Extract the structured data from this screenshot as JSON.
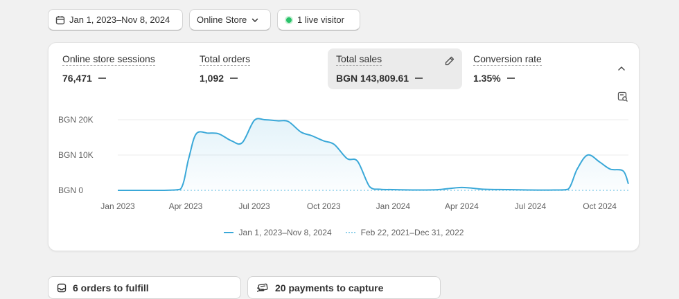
{
  "filters": {
    "date_range": "Jan 1, 2023–Nov 8, 2024",
    "store": "Online Store",
    "live_visitors": "1 live visitor",
    "live_color": "#29c26a"
  },
  "metrics": [
    {
      "label": "Online store sessions",
      "value": "76,471"
    },
    {
      "label": "Total orders",
      "value": "1,092"
    },
    {
      "label": "Total sales",
      "value": "BGN 143,809.61"
    },
    {
      "label": "Conversion rate",
      "value": "1.35%"
    }
  ],
  "chart_data": {
    "type": "area",
    "y_ticks": [
      "BGN 20K",
      "BGN 10K",
      "BGN 0"
    ],
    "x_ticks": [
      "Jan 2023",
      "Apr 2023",
      "Jul 2023",
      "Oct 2023",
      "Jan 2024",
      "Apr 2024",
      "Jul 2024",
      "Oct 2024"
    ],
    "ylim": [
      0,
      20000
    ],
    "grid": true,
    "legend_position": "bottom",
    "series_color": "#3aa8d8",
    "comparison_color": "#8fd0ea",
    "series": [
      {
        "name": "Jan 1, 2023–Nov 8, 2024",
        "x": [
          "2023-01-01",
          "2023-02-01",
          "2023-03-01",
          "2023-03-25",
          "2023-04-05",
          "2023-04-15",
          "2023-05-01",
          "2023-05-15",
          "2023-06-01",
          "2023-06-15",
          "2023-07-01",
          "2023-07-15",
          "2023-08-01",
          "2023-08-15",
          "2023-09-01",
          "2023-09-15",
          "2023-10-01",
          "2023-10-15",
          "2023-11-01",
          "2023-11-15",
          "2023-12-01",
          "2023-12-15",
          "2024-01-01",
          "2024-02-01",
          "2024-03-01",
          "2024-04-01",
          "2024-05-01",
          "2024-06-01",
          "2024-07-01",
          "2024-08-01",
          "2024-08-20",
          "2024-09-01",
          "2024-09-15",
          "2024-10-01",
          "2024-10-15",
          "2024-11-01",
          "2024-11-08"
        ],
        "values": [
          0,
          0,
          0,
          300,
          9000,
          16000,
          16200,
          16000,
          14000,
          13500,
          19800,
          20000,
          19700,
          19500,
          16500,
          15500,
          14000,
          13000,
          9000,
          8200,
          1000,
          300,
          200,
          100,
          200,
          800,
          300,
          200,
          100,
          100,
          300,
          6000,
          10000,
          8000,
          6000,
          5500,
          1800
        ]
      },
      {
        "name": "Feb 22, 2021–Dec 31, 2022",
        "x": [
          "2023-01-01",
          "2024-11-08"
        ],
        "values": [
          0,
          0
        ]
      }
    ]
  },
  "legend": {
    "current": "Jan 1, 2023–Nov 8, 2024",
    "comparison": "Feb 22, 2021–Dec 31, 2022"
  },
  "tasks": [
    {
      "label": "6 orders to fulfill",
      "icon": "inbox-icon"
    },
    {
      "label": "20 payments to capture",
      "icon": "payment-icon"
    }
  ]
}
